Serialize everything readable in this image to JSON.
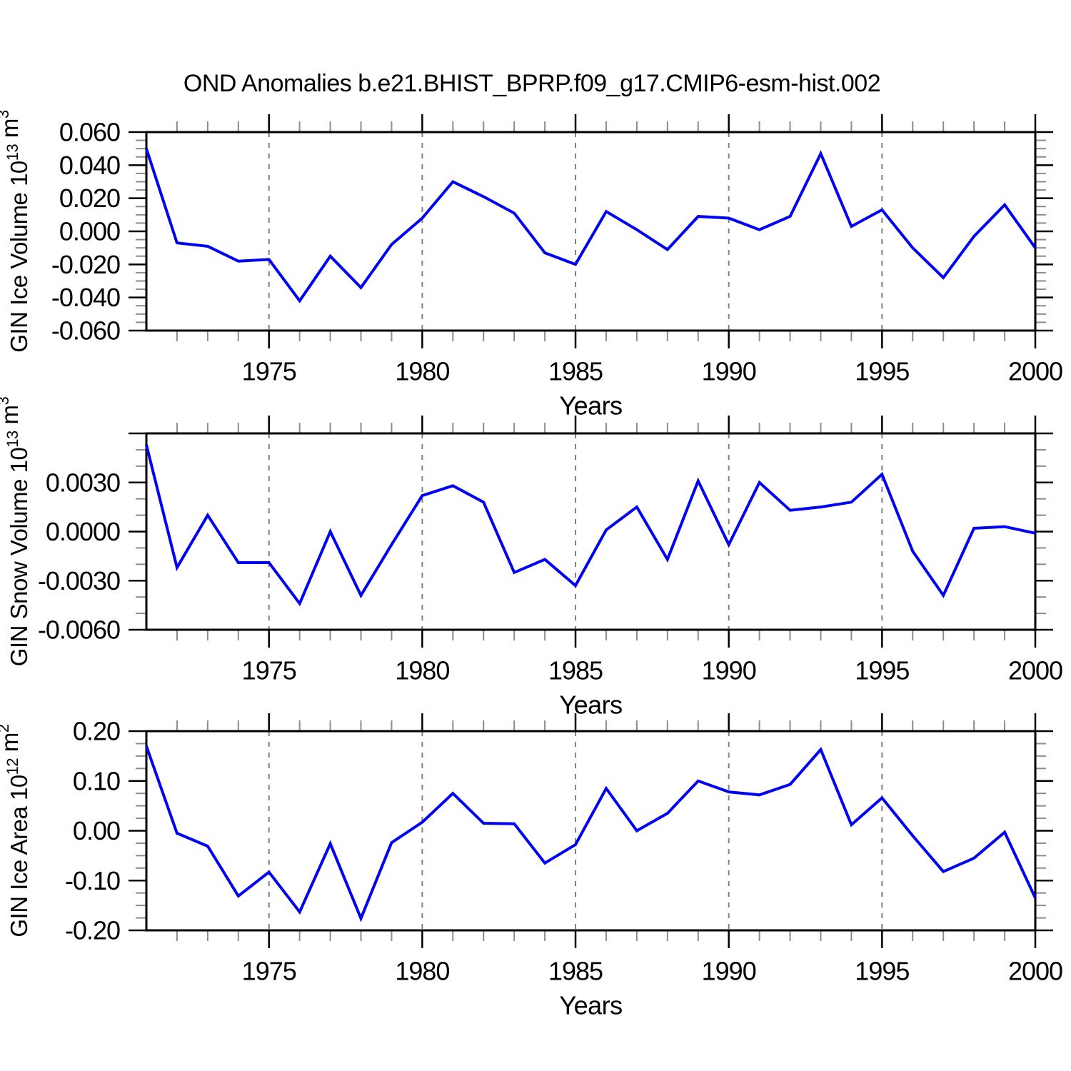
{
  "page": {
    "title": "OND Anomalies b.e21.BHIST_BPRP.f09_g17.CMIP6-esm-hist.002"
  },
  "colors": {
    "line": "#0202f2",
    "axis": "#000000",
    "minor_tick": "#8c8c8c",
    "grid": "#808080",
    "text": "#000000",
    "background": "#ffffff"
  },
  "x_axis": {
    "label": "Years",
    "start": 1971,
    "end": 2000,
    "major_ticks": [
      1975,
      1980,
      1985,
      1990,
      1995,
      2000
    ],
    "gridline_years": [
      1975,
      1980,
      1985,
      1990,
      1995
    ],
    "minor_step": 1
  },
  "years": [
    1971,
    1972,
    1973,
    1974,
    1975,
    1976,
    1977,
    1978,
    1979,
    1980,
    1981,
    1982,
    1983,
    1984,
    1985,
    1986,
    1987,
    1988,
    1989,
    1990,
    1991,
    1992,
    1993,
    1994,
    1995,
    1996,
    1997,
    1998,
    1999,
    2000
  ],
  "chart_data": [
    {
      "type": "line",
      "name": "gin-ice-volume",
      "ylabel_parts": [
        {
          "t": "GIN Ice Volume 10"
        },
        {
          "t": "13",
          "sup": true
        },
        {
          "t": " m"
        },
        {
          "t": "3",
          "sup": true
        }
      ],
      "ylim": [
        -0.06,
        0.06
      ],
      "yticks": [
        {
          "v": 0.06,
          "label": "0.060"
        },
        {
          "v": 0.04,
          "label": "0.040"
        },
        {
          "v": 0.02,
          "label": "0.020"
        },
        {
          "v": 0.0,
          "label": "0.000"
        },
        {
          "v": -0.02,
          "label": "-0.020"
        },
        {
          "v": -0.04,
          "label": "-0.040"
        },
        {
          "v": -0.06,
          "label": "-0.060"
        }
      ],
      "yminor_step": 0.005,
      "values": [
        0.05,
        -0.007,
        -0.009,
        -0.018,
        -0.017,
        -0.042,
        -0.015,
        -0.034,
        -0.008,
        0.008,
        0.03,
        0.021,
        0.011,
        -0.013,
        -0.02,
        0.012,
        0.001,
        -0.011,
        0.009,
        0.008,
        0.001,
        0.009,
        0.047,
        0.003,
        0.013,
        -0.01,
        -0.028,
        -0.003,
        0.016,
        -0.01
      ]
    },
    {
      "type": "line",
      "name": "gin-snow-volume",
      "ylabel_parts": [
        {
          "t": "GIN Snow Volume 10"
        },
        {
          "t": "13",
          "sup": true
        },
        {
          "t": " m"
        },
        {
          "t": "3",
          "sup": true
        }
      ],
      "ylim": [
        -0.006,
        0.006
      ],
      "yticks": [
        {
          "v": 0.006,
          "label": ""
        },
        {
          "v": 0.003,
          "label": "0.0030"
        },
        {
          "v": 0.0,
          "label": "0.0000"
        },
        {
          "v": -0.003,
          "label": "-0.0030"
        },
        {
          "v": -0.006,
          "label": "-0.0060"
        }
      ],
      "yminor_step": 0.001,
      "values": [
        0.0053,
        -0.0022,
        0.001,
        -0.0019,
        -0.0019,
        -0.0044,
        0.0,
        -0.0039,
        -0.0008,
        0.0022,
        0.0028,
        0.0018,
        -0.0025,
        -0.0017,
        -0.0033,
        0.0001,
        0.0015,
        -0.0017,
        0.0031,
        -0.0008,
        0.003,
        0.0013,
        0.0015,
        0.0018,
        0.0035,
        -0.0012,
        -0.0039,
        0.0002,
        0.0003,
        -0.0001
      ]
    },
    {
      "type": "line",
      "name": "gin-ice-area",
      "ylabel_parts": [
        {
          "t": "GIN Ice Area 10"
        },
        {
          "t": "12",
          "sup": true
        },
        {
          "t": " m"
        },
        {
          "t": "2",
          "sup": true
        }
      ],
      "ylim": [
        -0.2,
        0.2
      ],
      "yticks": [
        {
          "v": 0.2,
          "label": "0.20"
        },
        {
          "v": 0.1,
          "label": "0.10"
        },
        {
          "v": 0.0,
          "label": "0.00"
        },
        {
          "v": -0.1,
          "label": "-0.10"
        },
        {
          "v": -0.2,
          "label": "-0.20"
        }
      ],
      "yminor_step": 0.025,
      "values": [
        0.17,
        -0.005,
        -0.031,
        -0.131,
        -0.083,
        -0.163,
        -0.026,
        -0.176,
        -0.024,
        0.017,
        0.075,
        0.015,
        0.014,
        -0.065,
        -0.028,
        0.085,
        0.0,
        0.035,
        0.1,
        0.078,
        0.072,
        0.093,
        0.163,
        0.012,
        0.066,
        -0.01,
        -0.082,
        -0.055,
        -0.003,
        -0.135
      ]
    }
  ]
}
